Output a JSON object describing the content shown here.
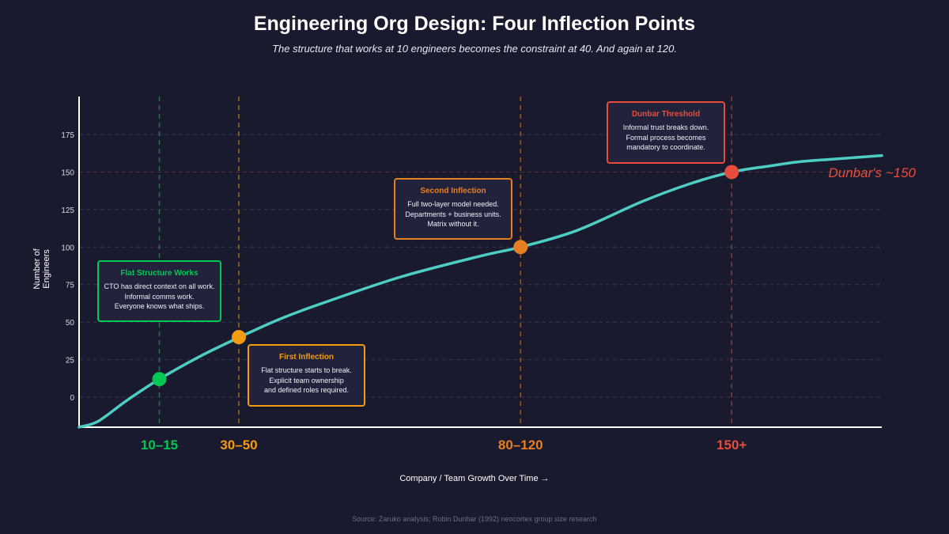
{
  "title": "Engineering Org Design: Four Inflection Points",
  "subtitle": "The structure that works at 10 engineers becomes the constraint at 40. And again at 120.",
  "source": "Source: Zaruko analysis; Robin Dunbar (1992) neocortex group size research",
  "colors": {
    "background": "#1a1a2e",
    "curve": "#4ecdc4",
    "green": "#00c853",
    "orange": "#f39c12",
    "orange2": "#e67e22",
    "red": "#e74c3c",
    "box": "#22223d"
  },
  "chart_data": {
    "type": "line",
    "title": "Engineering Org Design: Four Inflection Points",
    "xlabel": "Company / Team Growth Over Time →",
    "ylabel": "Number of Engineers",
    "ylim": [
      -20,
      200
    ],
    "xlim": [
      0,
      100
    ],
    "yticks": [
      0,
      25,
      50,
      75,
      100,
      125,
      150,
      175
    ],
    "grid": true,
    "curve": {
      "x": [
        0,
        2.4,
        6,
        10,
        15,
        20,
        25,
        30,
        40,
        50,
        55,
        62,
        70,
        76,
        81.3,
        86,
        90,
        95,
        100
      ],
      "y": [
        -20,
        -16,
        -2,
        12,
        27,
        40,
        52,
        62,
        80,
        94,
        100,
        111,
        130,
        142,
        150,
        154,
        157,
        159,
        161
      ]
    },
    "reference_line": {
      "y": 150,
      "label": "Dunbar's ~150"
    },
    "inflections": [
      {
        "x": 10,
        "y": 12,
        "range_label": "10–15",
        "color": "#00c853",
        "title": "Flat Structure Works",
        "lines": [
          "CTO has direct context on all work.",
          "Informal comms work.",
          "Everyone knows what ships."
        ]
      },
      {
        "x": 19.9,
        "y": 40,
        "range_label": "30–50",
        "color": "#f39c12",
        "title": "First Inflection",
        "lines": [
          "Flat structure starts to break.",
          "Explicit team ownership",
          "and defined roles required."
        ]
      },
      {
        "x": 55,
        "y": 100,
        "range_label": "80–120",
        "color": "#e67e22",
        "title": "Second Inflection",
        "lines": [
          "Full two-layer model needed.",
          "Departments + business units.",
          "Matrix without it."
        ]
      },
      {
        "x": 81.3,
        "y": 150,
        "range_label": "150+",
        "color": "#e74c3c",
        "title": "Dunbar Threshold",
        "lines": [
          "Informal trust breaks down.",
          "Formal process becomes",
          "mandatory to coordinate."
        ]
      }
    ]
  }
}
